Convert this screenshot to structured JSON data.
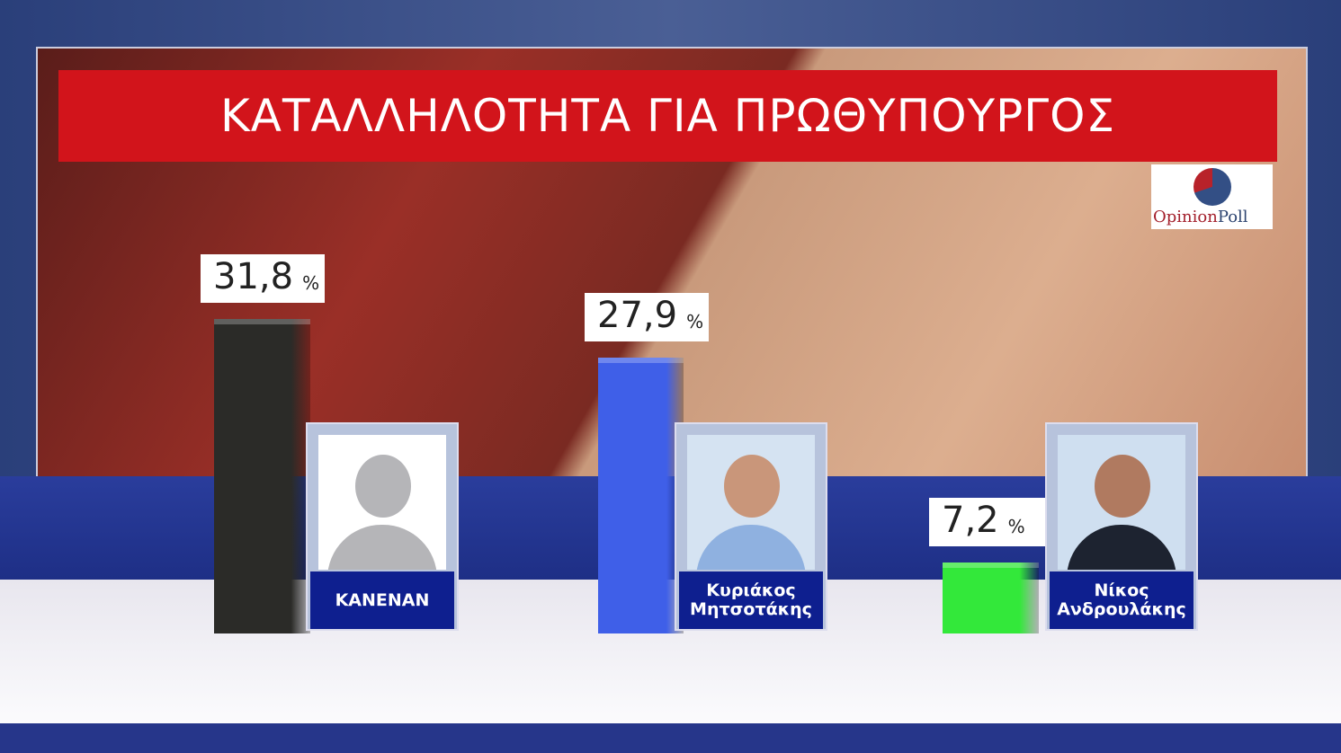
{
  "title": "ΚΑΤΑΛΛΗΛΟΤΗΤΑ ΓΙΑ ΠΡΩΘΥΠΟΥΡΓΟΣ",
  "logo": {
    "part1": "Opinion",
    "part2": "Poll"
  },
  "chart_data": {
    "type": "bar",
    "title": "ΚΑΤΑΛΛΗΛΟΤΗΤΑ ΓΙΑ ΠΡΩΘΥΠΟΥΡΓΟΣ",
    "unit": "%",
    "categories": [
      "ΚΑΝΕΝΑΝ",
      "Κυριάκος Μητσοτάκης",
      "Νίκος Ανδρουλάκης"
    ],
    "values": [
      31.8,
      27.9,
      7.2
    ],
    "value_labels": [
      "31,8",
      "27,9",
      "7,2"
    ],
    "colors": [
      "#2b2b28",
      "#3f5fe8",
      "#33e83a"
    ],
    "ylim": [
      0,
      35
    ]
  }
}
